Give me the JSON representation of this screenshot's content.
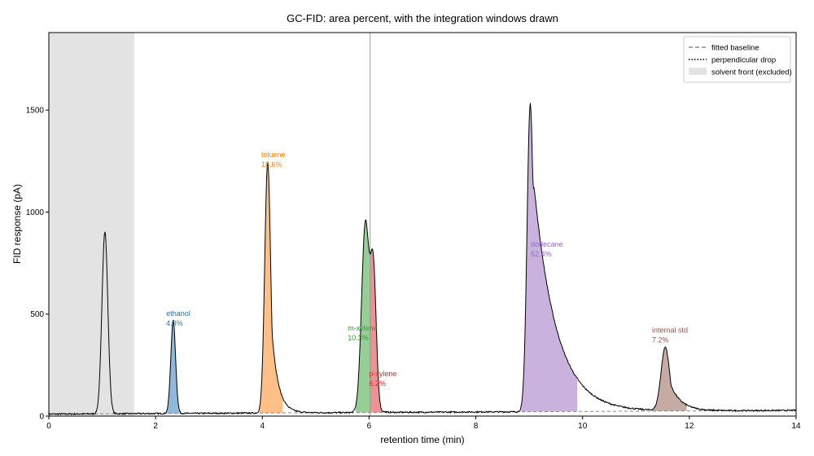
{
  "chart_data": {
    "type": "line",
    "title": "GC-FID: area percent, with the integration windows drawn",
    "xlabel": "retention time (min)",
    "ylabel": "FID response (pA)",
    "xlim": [
      0,
      14
    ],
    "ylim": [
      0,
      1880
    ],
    "x_ticks": [
      "0",
      "2",
      "4",
      "6",
      "8",
      "10",
      "12",
      "14"
    ],
    "y_ticks": [
      "0",
      "500",
      "1000",
      "1500"
    ],
    "grid": false,
    "legend_position": "top-right",
    "legend": [
      {
        "label": "fitted baseline",
        "style": "dashed",
        "color": "#888888"
      },
      {
        "label": "perpendicular drop",
        "style": "dotted",
        "color": "#000000"
      },
      {
        "label": "solvent front (excluded)",
        "style": "patch",
        "color": "#e3e3e3"
      }
    ],
    "solvent_front": {
      "x_start": 0,
      "x_end": 1.6
    },
    "drop_line_x": 6.02,
    "baseline": {
      "y_start": 10,
      "y_end": 28
    },
    "solvent_peak": {
      "rt": 1.05,
      "height": 895,
      "sigma": 0.055,
      "tau": 0.02
    },
    "peaks": [
      {
        "name": "ethanol",
        "area_percent": "4.3%",
        "rt": 2.33,
        "height": 455,
        "sigma": 0.045,
        "tau": 0.03,
        "window": [
          2.2,
          2.48
        ],
        "color": "#1f77b4",
        "fill": "#8fb8da",
        "label_x": 2.2,
        "label_y": 490
      },
      {
        "name": "toluene",
        "area_percent": "18.6%",
        "rt": 4.1,
        "height": 1230,
        "sigma": 0.055,
        "tau": 0.12,
        "window": [
          3.95,
          4.38
        ],
        "color": "#ff7f0e",
        "fill": "#ffbf86",
        "label_x": 3.98,
        "label_y": 1270
      },
      {
        "name": "m-xylene",
        "area_percent": "10.3%",
        "rt": 5.93,
        "height": 925,
        "sigma": 0.07,
        "tau": 0.04,
        "window": [
          5.75,
          6.02
        ],
        "color": "#2ca02c",
        "fill": "#95cf95",
        "label_x": 5.6,
        "label_y": 420
      },
      {
        "name": "p-xylene",
        "area_percent": "6.2%",
        "rt": 6.08,
        "height": 680,
        "sigma": 0.055,
        "tau": 0.05,
        "window": [
          6.02,
          6.25
        ],
        "color": "#d62728",
        "fill": "#eb9394",
        "label_x": 6.0,
        "label_y": 195
      },
      {
        "name": "dodecane",
        "area_percent": "52.4%",
        "rt": 9.02,
        "height": 1510,
        "sigma": 0.06,
        "tau": 0.42,
        "window": [
          8.85,
          9.9
        ],
        "color": "#9467bd",
        "fill": "#c9b3de",
        "label_x": 9.03,
        "label_y": 830
      },
      {
        "name": "internal std",
        "area_percent": "7.2%",
        "rt": 11.55,
        "height": 310,
        "sigma": 0.08,
        "tau": 0.2,
        "window": [
          11.3,
          11.95
        ],
        "color": "#8c564b",
        "fill": "#c6aba5",
        "label_x": 11.3,
        "label_y": 410
      }
    ]
  }
}
